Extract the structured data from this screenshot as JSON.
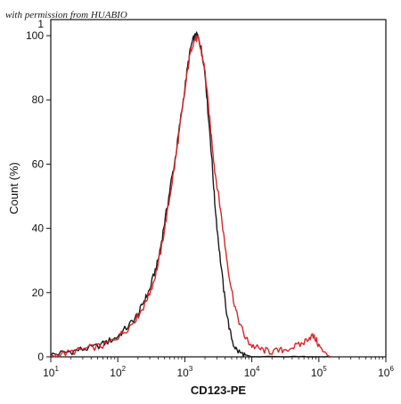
{
  "watermark": "with permission from HUABIO",
  "chart_data": {
    "type": "line",
    "title": "",
    "xlabel": "CD123-PE",
    "ylabel": "Count  (%)",
    "x_scale": "log",
    "xlim": [
      10,
      1000000
    ],
    "ylim": [
      0,
      105
    ],
    "x_tick_labels": [
      {
        "base": "10",
        "exp": "1",
        "value": 10
      },
      {
        "base": "10",
        "exp": "2",
        "value": 100
      },
      {
        "base": "10",
        "exp": "3",
        "value": 1000
      },
      {
        "base": "10",
        "exp": "4",
        "value": 10000
      },
      {
        "base": "10",
        "exp": "5",
        "value": 100000
      },
      {
        "base": "10",
        "exp": "6",
        "value": 1000000
      }
    ],
    "y_ticks": [
      0,
      20,
      40,
      60,
      80,
      100
    ],
    "y_tick_labels": [
      "0",
      "20",
      "40",
      "60",
      "80",
      "100"
    ],
    "top_partial_tick_label": "1",
    "grid": false,
    "legend": "none",
    "series": [
      {
        "color": "#1a1a1a",
        "x": [
          10,
          13,
          18,
          24,
          32,
          45,
          60,
          75,
          95,
          120,
          150,
          180,
          210,
          240,
          270,
          300,
          350,
          400,
          450,
          500,
          560,
          630,
          700,
          780,
          850,
          950,
          1050,
          1150,
          1250,
          1350,
          1450,
          1550,
          1650,
          1750,
          1900,
          2050,
          2200,
          2400,
          2600,
          2800,
          3100,
          3400,
          3800,
          4200,
          4700,
          5300,
          6000,
          7000,
          8000,
          9000,
          10000,
          30000,
          60000,
          85000,
          120000,
          150000
        ],
        "y": [
          0.5,
          1,
          1.5,
          2,
          2.5,
          3,
          4,
          5,
          6,
          8,
          10,
          12,
          14,
          17,
          19,
          21,
          26,
          30,
          36,
          42,
          48,
          55,
          60,
          67,
          73,
          80,
          87,
          93,
          97,
          99,
          100,
          100,
          98,
          96,
          92,
          86,
          77,
          68,
          58,
          48,
          38,
          30,
          21,
          14,
          8,
          4,
          2,
          1,
          0.5,
          0.2,
          0,
          0,
          0,
          0,
          0,
          0
        ]
      },
      {
        "color": "#d6262a",
        "x": [
          10,
          13,
          18,
          24,
          32,
          45,
          60,
          75,
          95,
          120,
          150,
          180,
          210,
          240,
          270,
          300,
          350,
          400,
          450,
          500,
          560,
          630,
          700,
          780,
          850,
          950,
          1050,
          1150,
          1250,
          1350,
          1450,
          1550,
          1650,
          1750,
          1900,
          2050,
          2200,
          2400,
          2600,
          2800,
          3100,
          3400,
          3800,
          4200,
          4700,
          5300,
          6000,
          7000,
          8000,
          9000,
          10000,
          12000,
          14000,
          17000,
          20000,
          25000,
          30000,
          40000,
          50000,
          60000,
          70000,
          80000,
          90000,
          100000,
          120000,
          150000
        ],
        "y": [
          0.3,
          0.8,
          1.2,
          1.8,
          2.4,
          3,
          3.5,
          4.5,
          6,
          7.5,
          9.5,
          11.5,
          13.5,
          15.5,
          18,
          20,
          24,
          29,
          34,
          40,
          46,
          53,
          59,
          66,
          72,
          79,
          86,
          92,
          96,
          98,
          99,
          99,
          98,
          95,
          92,
          87,
          80,
          72,
          65,
          58,
          52,
          46,
          38,
          31,
          24,
          18,
          13,
          9,
          6,
          4.5,
          3.5,
          2.8,
          2.2,
          1.8,
          1.6,
          1.8,
          2.2,
          3,
          3.5,
          4.5,
          6,
          6.5,
          5.5,
          3.5,
          1,
          0
        ]
      }
    ]
  }
}
